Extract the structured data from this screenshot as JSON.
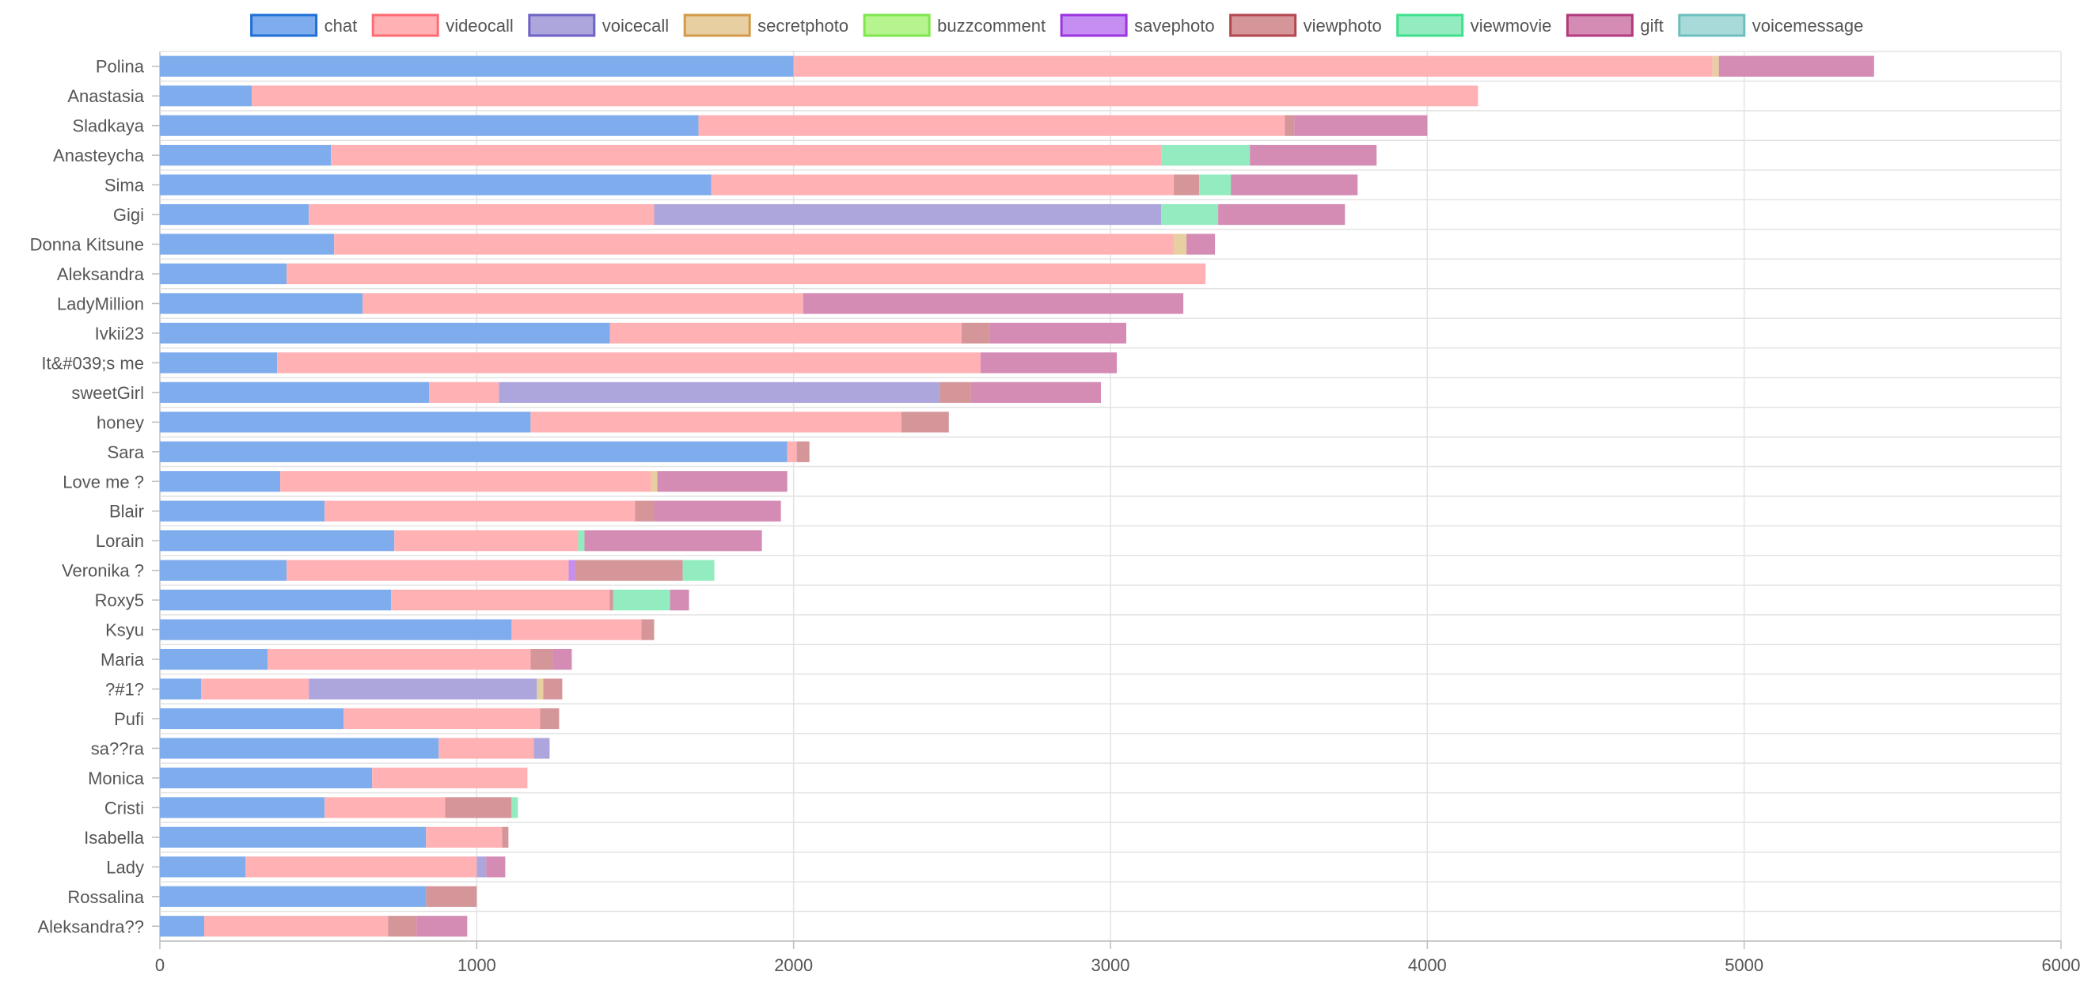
{
  "chart_data": {
    "type": "bar",
    "orientation": "horizontal",
    "stacked": true,
    "xlim": [
      0,
      6000
    ],
    "x_ticks": [
      "0",
      "1000",
      "2000",
      "3000",
      "4000",
      "5000",
      "6000"
    ],
    "grid": true,
    "legend_position": "top",
    "categories": [
      "Polina",
      "Anastasia",
      "Sladkaya",
      "Anasteycha",
      "Sima",
      "Gigi",
      "Donna Kitsune",
      "Aleksandra",
      "LadyMillion",
      "Ivkii23",
      "It&#039;s me",
      "sweetGirl",
      "honey",
      "Sara",
      "Love me ?",
      "Blair",
      "Lorain",
      "Veronika ?",
      "Roxy5",
      "Ksyu",
      "Maria",
      "?#1?",
      "Pufi",
      "sa??ra",
      "Monica",
      "Cristi",
      "Isabella",
      "Lady",
      "Rossalina",
      "Aleksandra??"
    ],
    "series": [
      {
        "name": "chat",
        "fill": "#7eaced",
        "border": "#1f6fd6",
        "values": [
          2000,
          290,
          1700,
          540,
          1740,
          470,
          550,
          400,
          640,
          1420,
          370,
          850,
          1170,
          1980,
          380,
          520,
          740,
          400,
          730,
          1110,
          340,
          130,
          580,
          880,
          670,
          520,
          840,
          270,
          840,
          140
        ]
      },
      {
        "name": "videocall",
        "fill": "#ffb1b4",
        "border": "#ff6b73",
        "values": [
          2900,
          3870,
          1850,
          2620,
          1460,
          1090,
          2650,
          2900,
          1390,
          1110,
          2220,
          220,
          1170,
          30,
          1170,
          980,
          580,
          890,
          690,
          410,
          830,
          340,
          620,
          300,
          490,
          380,
          240,
          730,
          0,
          580
        ]
      },
      {
        "name": "voicecall",
        "fill": "#aca6dc",
        "border": "#6c63c4",
        "values": [
          0,
          0,
          0,
          0,
          0,
          1600,
          0,
          0,
          0,
          0,
          0,
          1390,
          0,
          0,
          0,
          0,
          0,
          0,
          0,
          0,
          0,
          720,
          0,
          50,
          0,
          0,
          0,
          30,
          0,
          0
        ]
      },
      {
        "name": "secretphoto",
        "fill": "#e8cfa1",
        "border": "#d29a4a",
        "values": [
          20,
          0,
          0,
          0,
          0,
          0,
          40,
          0,
          0,
          0,
          0,
          0,
          0,
          0,
          20,
          0,
          0,
          0,
          0,
          0,
          0,
          20,
          0,
          0,
          0,
          0,
          0,
          0,
          0,
          0
        ]
      },
      {
        "name": "buzzcomment",
        "fill": "#b6f58e",
        "border": "#7fe64e",
        "values": [
          0,
          0,
          0,
          0,
          0,
          0,
          0,
          0,
          0,
          0,
          0,
          0,
          0,
          0,
          0,
          0,
          0,
          0,
          0,
          0,
          0,
          0,
          0,
          0,
          0,
          0,
          0,
          0,
          0,
          0
        ]
      },
      {
        "name": "savephoto",
        "fill": "#c58ef0",
        "border": "#9b33e0",
        "values": [
          0,
          0,
          0,
          0,
          0,
          0,
          0,
          0,
          0,
          0,
          0,
          0,
          0,
          0,
          0,
          0,
          0,
          20,
          0,
          0,
          0,
          0,
          0,
          0,
          0,
          0,
          0,
          0,
          0,
          0
        ]
      },
      {
        "name": "viewphoto",
        "fill": "#d5969a",
        "border": "#b3474f",
        "values": [
          0,
          0,
          30,
          0,
          80,
          0,
          0,
          0,
          0,
          90,
          0,
          100,
          150,
          40,
          0,
          60,
          0,
          340,
          10,
          40,
          70,
          60,
          60,
          0,
          0,
          210,
          20,
          0,
          160,
          90
        ]
      },
      {
        "name": "viewmovie",
        "fill": "#93ecc0",
        "border": "#3ee08c",
        "values": [
          0,
          0,
          0,
          280,
          100,
          180,
          0,
          0,
          0,
          0,
          0,
          0,
          0,
          0,
          0,
          0,
          20,
          100,
          180,
          0,
          0,
          0,
          0,
          0,
          0,
          20,
          0,
          0,
          0,
          0
        ]
      },
      {
        "name": "gift",
        "fill": "#d48bb4",
        "border": "#b33a7c",
        "values": [
          490,
          0,
          420,
          400,
          400,
          400,
          90,
          0,
          1200,
          430,
          430,
          410,
          0,
          0,
          410,
          400,
          560,
          0,
          60,
          0,
          60,
          0,
          0,
          0,
          0,
          0,
          0,
          60,
          0,
          160
        ]
      },
      {
        "name": "voicemessage",
        "fill": "#a9dada",
        "border": "#6cbfbd",
        "values": [
          0,
          0,
          0,
          0,
          0,
          0,
          0,
          0,
          0,
          0,
          0,
          0,
          0,
          0,
          0,
          0,
          0,
          0,
          0,
          0,
          0,
          0,
          0,
          0,
          0,
          0,
          0,
          0,
          0,
          0
        ]
      }
    ]
  }
}
